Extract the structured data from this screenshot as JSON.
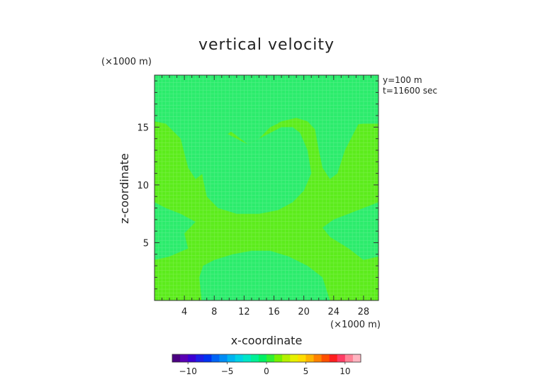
{
  "chart_data": {
    "type": "heatmap",
    "title": "vertical velocity",
    "xlabel": "x-coordinate",
    "ylabel": "z-coordinate",
    "x_unit": "(×1000 m)",
    "y_unit": "(×1000 m)",
    "annotations": [
      "y=100 m",
      "t=11600 sec"
    ],
    "xlim": [
      0,
      30
    ],
    "ylim": [
      0,
      19.5
    ],
    "x_ticks": [
      4,
      8,
      12,
      16,
      20,
      24,
      28
    ],
    "y_ticks": [
      5,
      10,
      15
    ],
    "colorbar": {
      "range": [
        -12,
        12
      ],
      "ticks": [
        -10,
        -5,
        0,
        5,
        10
      ],
      "colors": [
        "#4b0082",
        "#5a00b4",
        "#3c00d2",
        "#1e1ee6",
        "#0032f0",
        "#0064f5",
        "#008cf5",
        "#00b4f0",
        "#00d2e6",
        "#00e6c8",
        "#00f096",
        "#00f064",
        "#32f032",
        "#78f000",
        "#b4f000",
        "#e6f000",
        "#ffdc00",
        "#ffb400",
        "#ff8200",
        "#ff5000",
        "#ff1e1e",
        "#ff3c64",
        "#ff8296",
        "#ffb4c0"
      ]
    },
    "fields": {
      "background_color": "#2cec6c",
      "positive_region_color": "#5cec1c",
      "background_value_range": [
        0,
        1
      ],
      "positive_region_value_range": [
        1,
        2
      ]
    },
    "positive_regions": [
      {
        "name": "central cross-shaped region",
        "points": [
          [
            0,
            15.5
          ],
          [
            1.5,
            15.3
          ],
          [
            3.5,
            14
          ],
          [
            4.5,
            11.5
          ],
          [
            5.5,
            10.5
          ],
          [
            6.5,
            11
          ],
          [
            7.5,
            12.5
          ],
          [
            9,
            14
          ],
          [
            11,
            15
          ],
          [
            12.5,
            14
          ],
          [
            14,
            14.5
          ],
          [
            15.5,
            15
          ],
          [
            17,
            15.5
          ],
          [
            19,
            15.8
          ],
          [
            20.5,
            15.5
          ],
          [
            21.5,
            14.8
          ],
          [
            22,
            13
          ],
          [
            22.5,
            11.5
          ],
          [
            23.5,
            10.5
          ],
          [
            24.5,
            11
          ],
          [
            25.5,
            13
          ],
          [
            27.5,
            15.5
          ],
          [
            30,
            15.5
          ],
          [
            30,
            8.5
          ],
          [
            28,
            8
          ],
          [
            26,
            7.5
          ],
          [
            24,
            7
          ],
          [
            22.5,
            6.3
          ],
          [
            23.5,
            5.5
          ],
          [
            26,
            4.5
          ],
          [
            28,
            3.5
          ],
          [
            30,
            3.8
          ],
          [
            30,
            0
          ],
          [
            23.5,
            0
          ],
          [
            22.5,
            2
          ],
          [
            20.5,
            3
          ],
          [
            18,
            3.8
          ],
          [
            15.5,
            4.3
          ],
          [
            13,
            4.3
          ],
          [
            10.5,
            4
          ],
          [
            8,
            3.5
          ],
          [
            6.5,
            3
          ],
          [
            6,
            2
          ],
          [
            6.3,
            0
          ],
          [
            0,
            0
          ],
          [
            0,
            3.5
          ],
          [
            2,
            3.8
          ],
          [
            4.5,
            4.5
          ],
          [
            4,
            5.8
          ],
          [
            5.5,
            6.8
          ],
          [
            3.5,
            7.5
          ],
          [
            1.5,
            8
          ],
          [
            0,
            8.5
          ]
        ]
      }
    ],
    "background_islands": [
      {
        "name": "upper-left island",
        "points": [
          [
            7,
            19.5
          ],
          [
            7,
            18
          ],
          [
            6.5,
            17
          ],
          [
            5.5,
            16.2
          ],
          [
            6.5,
            15.5
          ],
          [
            8.5,
            15.2
          ],
          [
            10.5,
            14.5
          ],
          [
            12.5,
            13.5
          ],
          [
            14,
            14
          ],
          [
            15.5,
            15
          ],
          [
            16.5,
            15.3
          ],
          [
            17.5,
            16
          ],
          [
            18.5,
            17
          ],
          [
            18.5,
            19.5
          ]
        ]
      },
      {
        "name": "upper-right island",
        "points": [
          [
            21.5,
            19.5
          ],
          [
            21.5,
            17.5
          ],
          [
            22,
            16
          ],
          [
            22.5,
            15
          ],
          [
            23.5,
            14.5
          ],
          [
            25,
            15
          ],
          [
            26.5,
            15.2
          ],
          [
            28,
            15.3
          ],
          [
            30,
            15.3
          ],
          [
            30,
            19.5
          ]
        ]
      },
      {
        "name": "center island",
        "points": [
          [
            6,
            12.5
          ],
          [
            6.5,
            10.5
          ],
          [
            7,
            9
          ],
          [
            8.5,
            8
          ],
          [
            11,
            7.5
          ],
          [
            14,
            7.5
          ],
          [
            16.5,
            7.8
          ],
          [
            18.5,
            8.5
          ],
          [
            20,
            9.5
          ],
          [
            21,
            11
          ],
          [
            20.5,
            13
          ],
          [
            19.5,
            14.5
          ],
          [
            18.5,
            15
          ],
          [
            17,
            15
          ],
          [
            15.5,
            14.5
          ],
          [
            14,
            14
          ],
          [
            12.5,
            13.5
          ],
          [
            11,
            14
          ],
          [
            9.5,
            14.5
          ],
          [
            8,
            14.2
          ],
          [
            7,
            13.5
          ]
        ]
      }
    ]
  }
}
